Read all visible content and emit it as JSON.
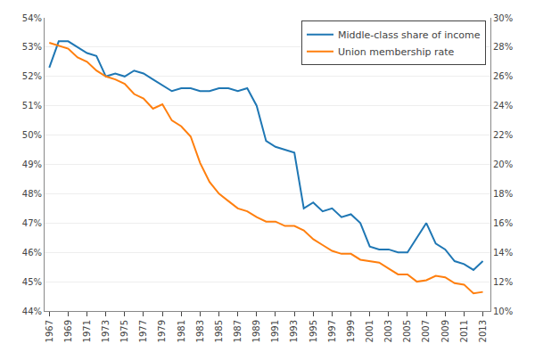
{
  "chart_data": {
    "type": "line",
    "x": [
      1967,
      1968,
      1969,
      1970,
      1971,
      1972,
      1973,
      1974,
      1975,
      1976,
      1977,
      1978,
      1979,
      1980,
      1981,
      1982,
      1983,
      1984,
      1985,
      1986,
      1987,
      1988,
      1989,
      1990,
      1991,
      1992,
      1993,
      1994,
      1995,
      1996,
      1997,
      1998,
      1999,
      2000,
      2001,
      2002,
      2003,
      2004,
      2005,
      2006,
      2007,
      2008,
      2009,
      2010,
      2011,
      2012,
      2013
    ],
    "series": [
      {
        "name": "Middle-class share of income",
        "values": [
          52.3,
          53.2,
          53.2,
          53.0,
          52.8,
          52.7,
          52.0,
          52.1,
          52.0,
          52.2,
          52.1,
          51.9,
          51.7,
          51.5,
          51.6,
          51.6,
          51.5,
          51.5,
          51.6,
          51.6,
          51.5,
          51.6,
          51.0,
          49.8,
          49.6,
          49.5,
          49.4,
          47.5,
          47.7,
          47.4,
          47.5,
          47.2,
          47.3,
          47.0,
          46.2,
          46.1,
          46.1,
          46.0,
          46.0,
          46.5,
          47.0,
          46.3,
          46.1,
          45.7,
          45.6,
          45.4,
          45.7
        ]
      },
      {
        "name": "Union membership rate",
        "axis": "y2",
        "values": [
          28.3,
          28.1,
          27.9,
          27.3,
          27.0,
          26.4,
          26.0,
          25.8,
          25.5,
          24.8,
          24.5,
          23.8,
          24.1,
          23.0,
          22.6,
          21.9,
          20.1,
          18.8,
          18.0,
          17.5,
          17.0,
          16.8,
          16.4,
          16.1,
          16.1,
          15.8,
          15.8,
          15.5,
          14.9,
          14.5,
          14.1,
          13.9,
          13.9,
          13.5,
          13.4,
          13.3,
          12.9,
          12.5,
          12.5,
          12.0,
          12.1,
          12.4,
          12.3,
          11.9,
          11.8,
          11.2,
          11.3
        ]
      }
    ],
    "xlim": [
      1966.5,
      2013.8
    ],
    "xticks": [
      1967,
      1969,
      1971,
      1973,
      1975,
      1977,
      1979,
      1981,
      1983,
      1985,
      1987,
      1989,
      1991,
      1993,
      1995,
      1997,
      1999,
      2001,
      2003,
      2005,
      2007,
      2009,
      2011,
      2013
    ],
    "ylim": [
      44.0,
      54.0
    ],
    "yticks": [
      {
        "value": 44,
        "label": "44%"
      },
      {
        "value": 45,
        "label": "45%"
      },
      {
        "value": 46,
        "label": "46%"
      },
      {
        "value": 47,
        "label": "47%"
      },
      {
        "value": 48,
        "label": "48%"
      },
      {
        "value": 49,
        "label": "49%"
      },
      {
        "value": 50,
        "label": "50%"
      },
      {
        "value": 51,
        "label": "51%"
      },
      {
        "value": 52,
        "label": "52%"
      },
      {
        "value": 53,
        "label": "53%"
      },
      {
        "value": 54,
        "label": "54%"
      }
    ],
    "y2lim": [
      10.0,
      30.0
    ],
    "y2ticks": [
      {
        "value": 10,
        "label": "10%"
      },
      {
        "value": 12,
        "label": "12%"
      },
      {
        "value": 14,
        "label": "14%"
      },
      {
        "value": 16,
        "label": "16%"
      },
      {
        "value": 18,
        "label": "18%"
      },
      {
        "value": 20,
        "label": "20%"
      },
      {
        "value": 22,
        "label": "22%"
      },
      {
        "value": 24,
        "label": "24%"
      },
      {
        "value": 26,
        "label": "26%"
      },
      {
        "value": 28,
        "label": "28%"
      },
      {
        "value": 30,
        "label": "30%"
      }
    ],
    "grid": true,
    "legend": "upper right"
  }
}
